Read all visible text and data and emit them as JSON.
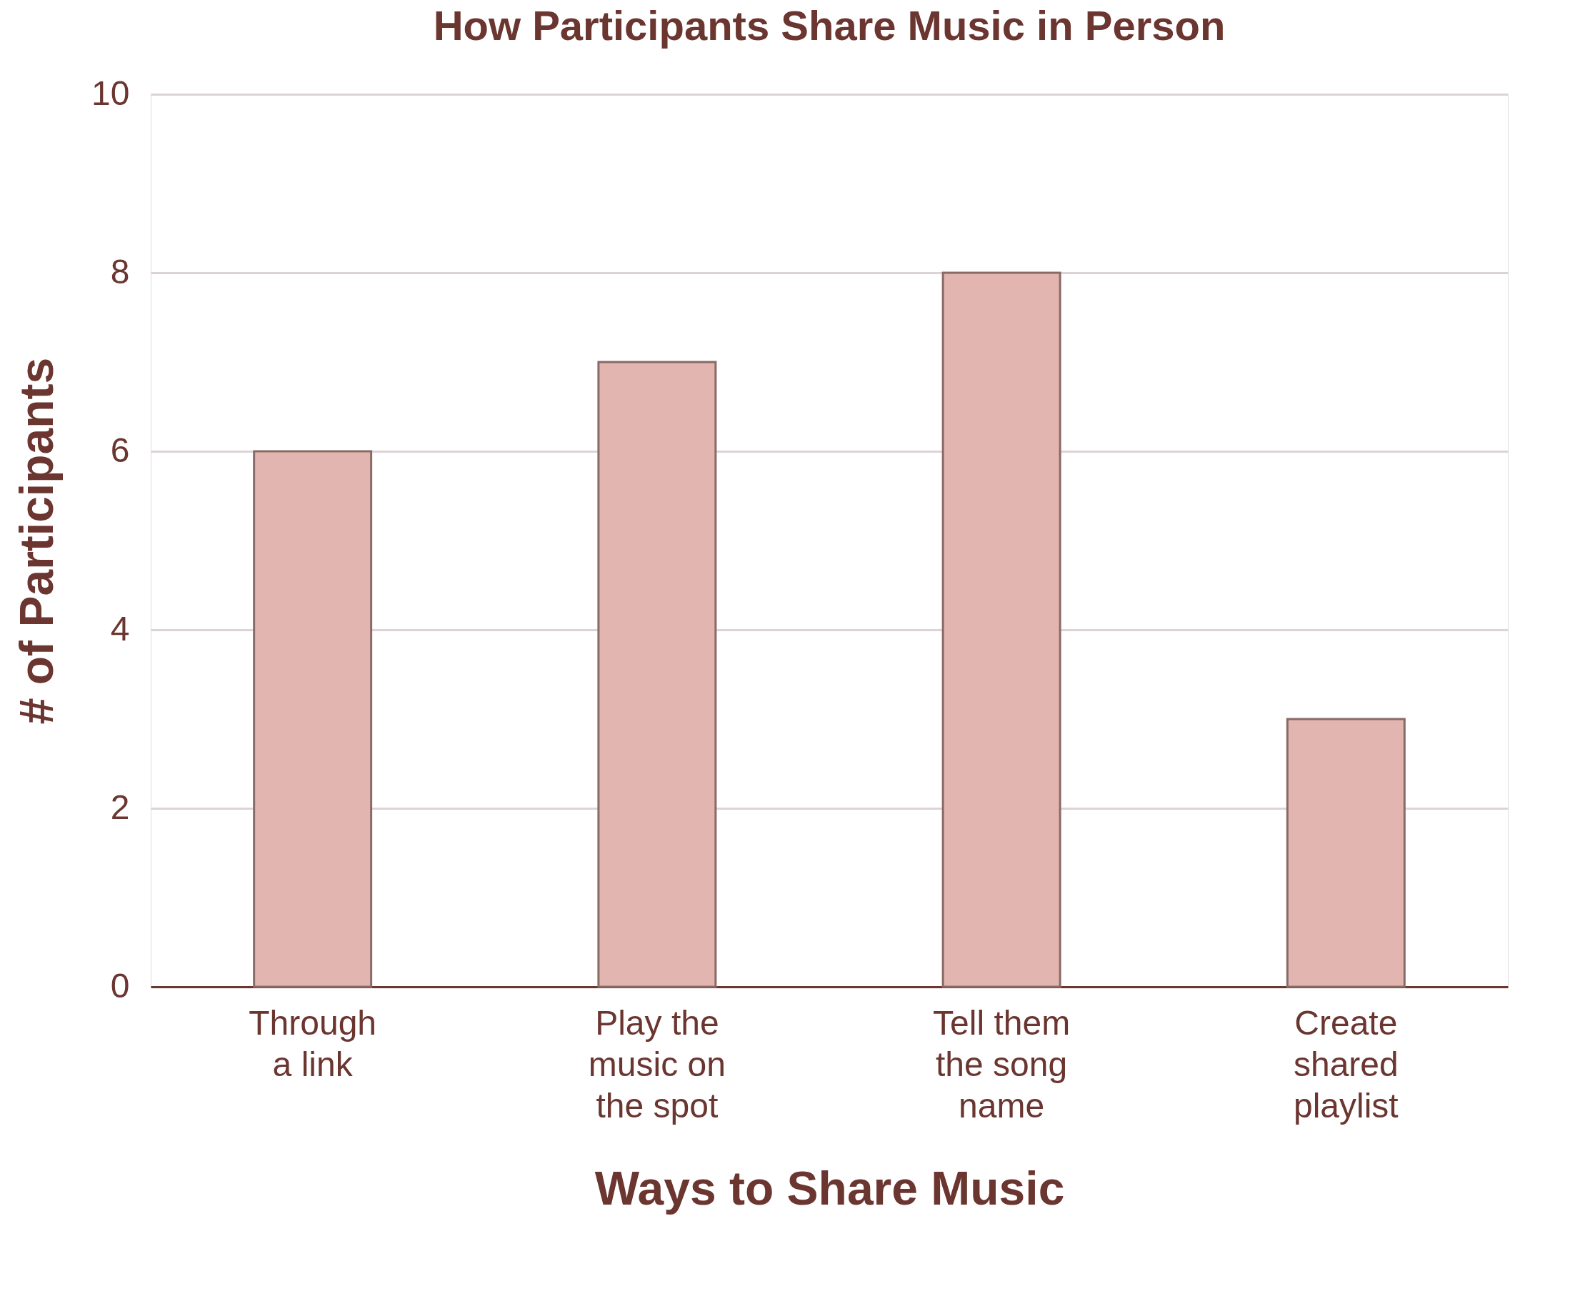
{
  "chart_data": {
    "type": "bar",
    "title": "How Participants Share Music in Person",
    "xlabel": "Ways to Share Music",
    "ylabel": "# of Participants",
    "categories": [
      "Through\na link",
      "Play the\nmusic on\nthe spot",
      "Tell them\nthe song\nname",
      "Create\nshared\nplaylist"
    ],
    "values": [
      6,
      7,
      8,
      3
    ],
    "color": "#e2b5b0",
    "ylim": [
      0,
      10
    ],
    "yticks": [
      0,
      2,
      4,
      6,
      8,
      10
    ],
    "grid": "y"
  }
}
